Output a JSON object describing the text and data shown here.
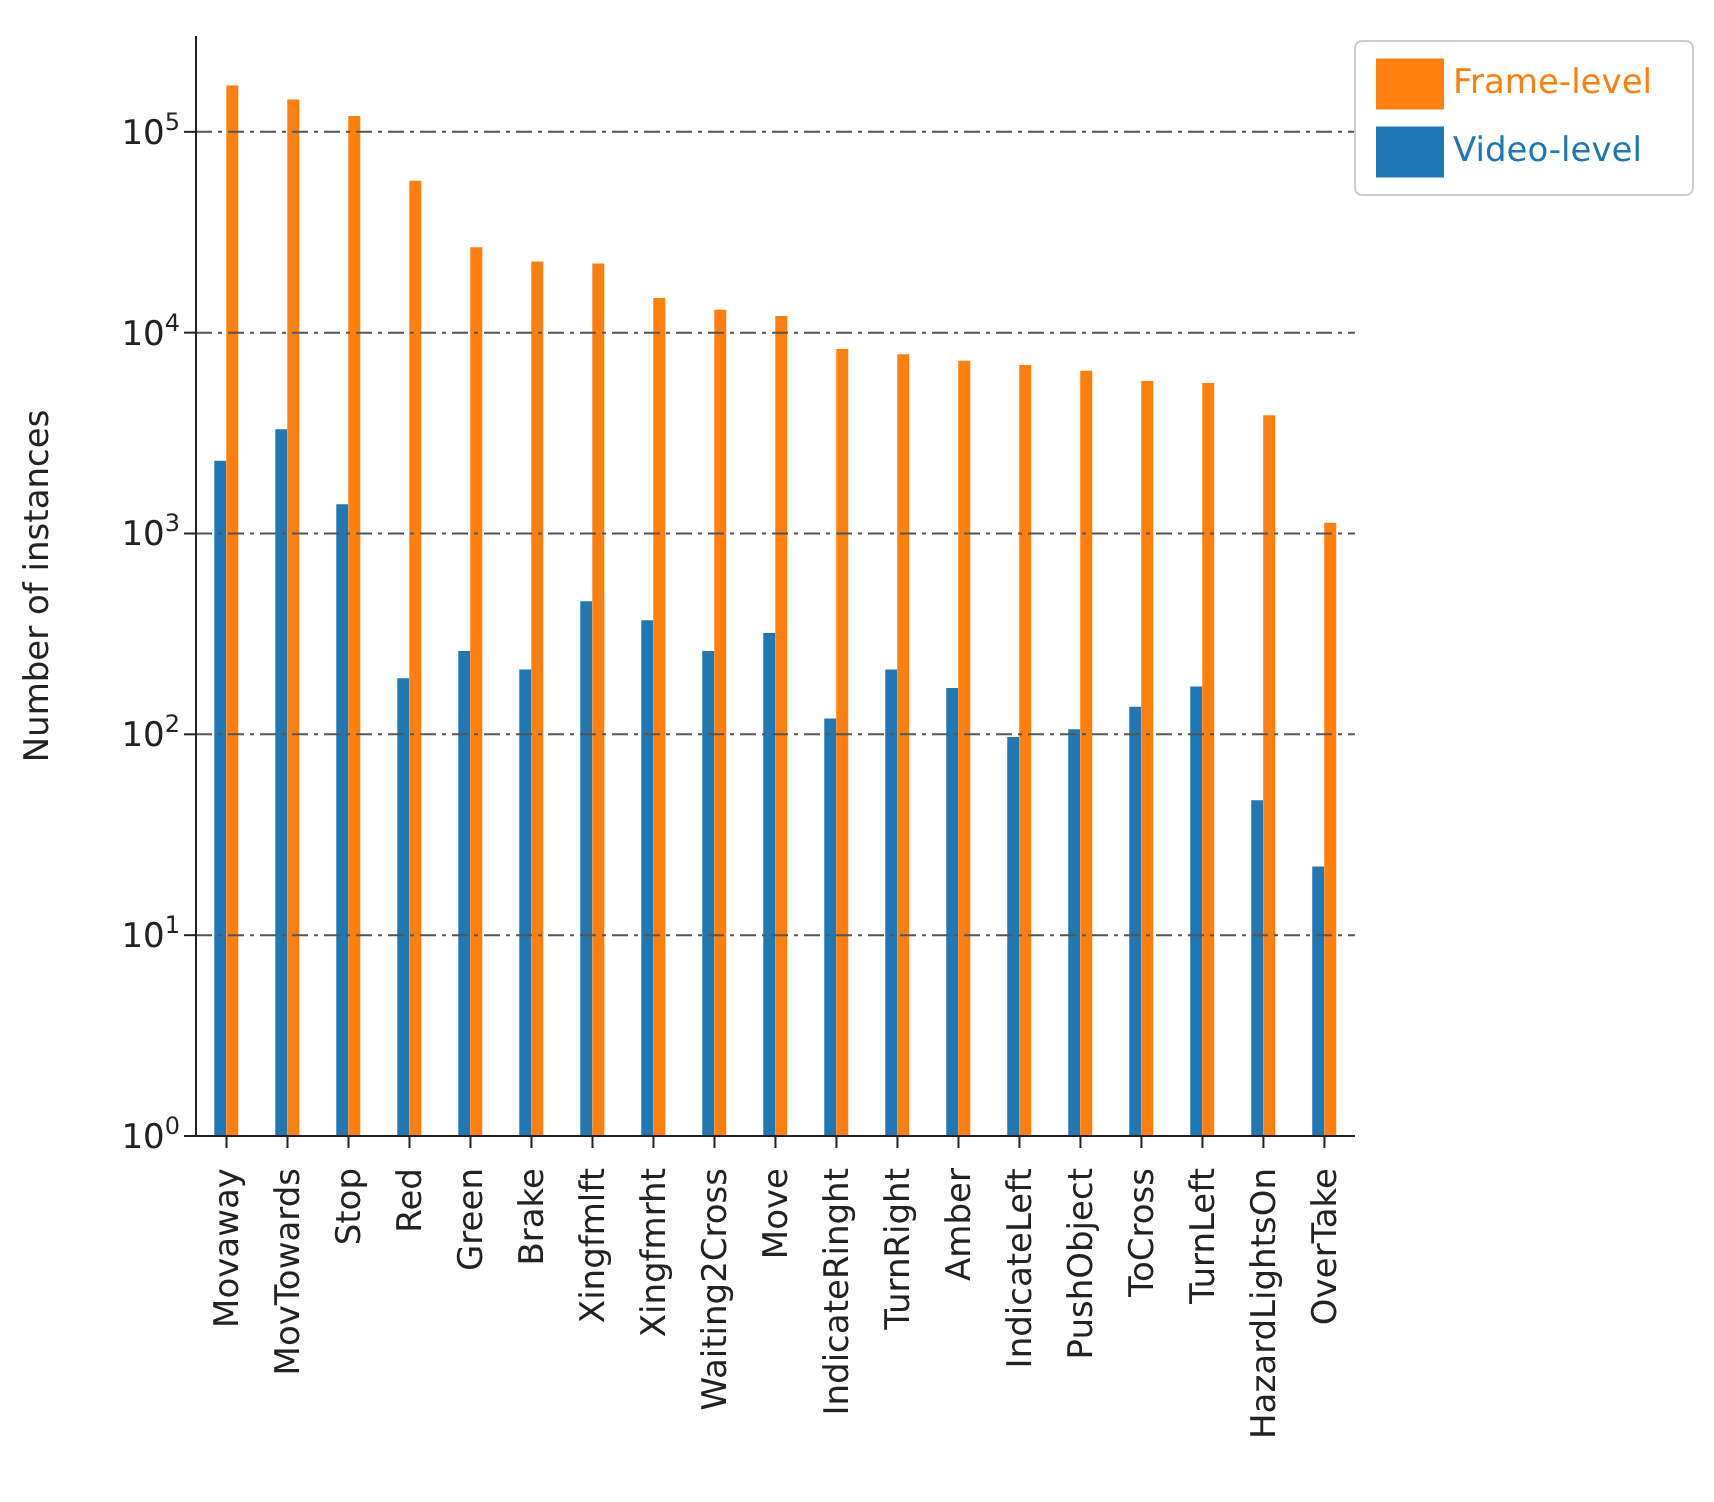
{
  "chart_data": {
    "type": "bar",
    "ylabel": "Number of instances",
    "categories": [
      "Movaway",
      "MovTowards",
      "Stop",
      "Red",
      "Green",
      "Brake",
      "Xingfmlft",
      "Xingfmrht",
      "Waiting2Cross",
      "Move",
      "IndicateRinght",
      "TurnRight",
      "Amber",
      "IndicateLeft",
      "PushObject",
      "ToCross",
      "TurnLeft",
      "HazardLightsOn",
      "OverTake"
    ],
    "series": [
      {
        "name": "Video-level",
        "color": "#1f77b4",
        "values": [
          2300,
          3300,
          1400,
          190,
          260,
          210,
          460,
          370,
          260,
          320,
          120,
          210,
          170,
          97,
          106,
          137,
          173,
          47,
          22
        ]
      },
      {
        "name": "Frame-level",
        "color": "#ff7f0e",
        "values": [
          170000,
          145000,
          120000,
          57000,
          26600,
          22600,
          22100,
          14900,
          13000,
          12100,
          8300,
          7800,
          7250,
          6900,
          6460,
          5750,
          5620,
          3880,
          1130
        ]
      }
    ],
    "log": true,
    "ylim": [
      1,
      300000
    ],
    "yticks": [
      {
        "value": 1,
        "label": "10$^{0}$"
      },
      {
        "value": 10,
        "label": "10$^{1}$"
      },
      {
        "value": 100,
        "label": "10$^{2}$"
      },
      {
        "value": 1000,
        "label": "10$^{3}$"
      },
      {
        "value": 10000,
        "label": "10$^{4}$"
      },
      {
        "value": 100000,
        "label": "10$^{5}$"
      }
    ],
    "grid": "y",
    "legend": "top right"
  }
}
